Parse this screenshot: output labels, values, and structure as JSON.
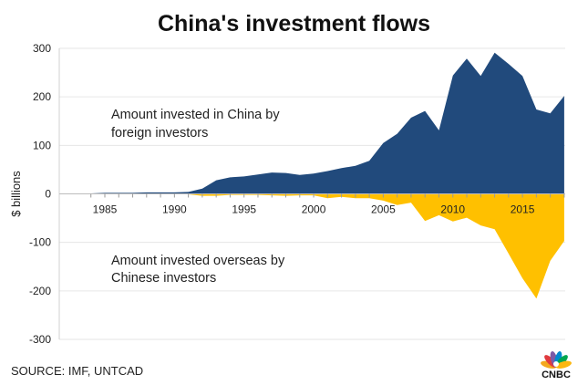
{
  "chart_data": {
    "type": "area",
    "title": "China's investment flows",
    "ylabel": "$ billions",
    "xlabel": "",
    "ylim": [
      -300,
      300
    ],
    "yticks": [
      300,
      200,
      100,
      0,
      -100,
      -200,
      -300
    ],
    "xticks": [
      1985,
      1990,
      1995,
      2000,
      2005,
      2010,
      2015
    ],
    "grid": true,
    "x": [
      1984,
      1985,
      1986,
      1987,
      1988,
      1989,
      1990,
      1991,
      1992,
      1993,
      1994,
      1995,
      1996,
      1997,
      1998,
      1999,
      2000,
      2001,
      2002,
      2003,
      2004,
      2005,
      2006,
      2007,
      2008,
      2009,
      2010,
      2011,
      2012,
      2013,
      2014,
      2015,
      2016,
      2017,
      2018
    ],
    "series": [
      {
        "name": "Amount invested in China by foreign investors",
        "color": "#214a7c",
        "values": [
          1,
          2,
          2,
          2,
          3,
          3,
          3,
          4,
          11,
          28,
          34,
          36,
          40,
          44,
          43,
          39,
          42,
          47,
          53,
          58,
          68,
          105,
          124,
          157,
          171,
          131,
          244,
          279,
          243,
          291,
          268,
          243,
          174,
          166,
          202
        ]
      },
      {
        "name": "Amount invested overseas by Chinese investors",
        "color": "#ffc000",
        "values": [
          0,
          0,
          0,
          0,
          0,
          0,
          0,
          -1,
          -4,
          -4,
          -2,
          -2,
          -2,
          -3,
          -4,
          -3,
          -3,
          -9,
          -6,
          -9,
          -9,
          -14,
          -23,
          -18,
          -56,
          -44,
          -57,
          -49,
          -65,
          -73,
          -123,
          -174,
          -216,
          -138,
          -97
        ]
      }
    ],
    "annotations": [
      [
        "Amount invested in China by",
        "foreign investors"
      ],
      [
        "Amount invested overseas by",
        "Chinese investors"
      ]
    ],
    "source": "SOURCE: IMF, UNTCAD"
  },
  "logo": {
    "text": "CNBC",
    "colors": [
      "#f4a81d",
      "#e03a3e",
      "#7b5aa6",
      "#0089cf",
      "#00a650",
      "#fcb711"
    ]
  }
}
